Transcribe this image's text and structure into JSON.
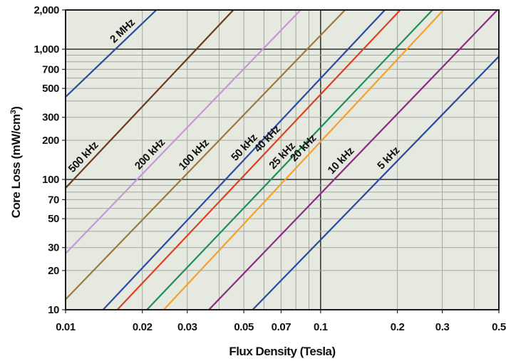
{
  "chart_data": {
    "type": "line",
    "scale": "log-log",
    "xlabel": "Flux Density (Tesla)",
    "ylabel": "Core Loss (mW/cm³)",
    "ylabel_base": "Core Loss (mW/cm",
    "ylabel_sup": "3",
    "ylabel_close": ")",
    "xlim": [
      0.01,
      0.5
    ],
    "ylim": [
      10,
      2000
    ],
    "grid": true,
    "plot_background": "#e6e9df",
    "grid_color": "#a5a8a2",
    "frame_color": "#1c1c1c",
    "x_ticks": [
      {
        "value": 0.01,
        "label": "0.01"
      },
      {
        "value": 0.02,
        "label": "0.02"
      },
      {
        "value": 0.03,
        "label": "0.03"
      },
      {
        "value": 0.05,
        "label": "0.05"
      },
      {
        "value": 0.07,
        "label": "0.07"
      },
      {
        "value": 0.1,
        "label": "0.1"
      },
      {
        "value": 0.2,
        "label": "0.2"
      },
      {
        "value": 0.3,
        "label": "0.3"
      },
      {
        "value": 0.5,
        "label": "0.5"
      }
    ],
    "x_minor_grid": [
      0.04,
      0.06,
      0.08,
      0.09,
      0.4
    ],
    "y_ticks": [
      {
        "value": 10,
        "label": "10"
      },
      {
        "value": 20,
        "label": "20"
      },
      {
        "value": 30,
        "label": "30"
      },
      {
        "value": 50,
        "label": "50"
      },
      {
        "value": 70,
        "label": "70"
      },
      {
        "value": 100,
        "label": "100"
      },
      {
        "value": 200,
        "label": "200"
      },
      {
        "value": 300,
        "label": "300"
      },
      {
        "value": 500,
        "label": "500"
      },
      {
        "value": 700,
        "label": "700"
      },
      {
        "value": 1000,
        "label": "1,000"
      },
      {
        "value": 2000,
        "label": "2,000"
      }
    ],
    "y_minor_grid": [
      40,
      60,
      80,
      90,
      400,
      600,
      800,
      900
    ],
    "y_major_grid": [
      10,
      100,
      1000
    ],
    "series": [
      {
        "name": "2 MHz",
        "color": "#2a4a9c",
        "points": [
          [
            0.01,
            430
          ],
          [
            0.0227,
            2000
          ]
        ],
        "label_at": 0.0176
      },
      {
        "name": "500 kHz",
        "color": "#6a3a1c",
        "points": [
          [
            0.01,
            86
          ],
          [
            0.0455,
            2000
          ]
        ],
        "label_at": 0.0124
      },
      {
        "name": "200 kHz",
        "color": "#c597d6",
        "points": [
          [
            0.01,
            27
          ],
          [
            0.0835,
            2000
          ]
        ],
        "label_at": 0.0226
      },
      {
        "name": "100 kHz",
        "color": "#9a7a3a",
        "points": [
          [
            0.01,
            12
          ],
          [
            0.1247,
            2000
          ]
        ],
        "label_at": 0.0336
      },
      {
        "name": "50 kHz",
        "color": "#2a4aa3",
        "points": [
          [
            0.01403,
            10
          ],
          [
            0.1787,
            2000
          ]
        ],
        "label_at": 0.053
      },
      {
        "name": "40 kHz",
        "color": "#dd4020",
        "points": [
          [
            0.01595,
            10
          ],
          [
            0.2054,
            2000
          ]
        ],
        "label_at": 0.0652
      },
      {
        "name": "25 kHz",
        "color": "#1f8f58",
        "points": [
          [
            0.02084,
            10
          ],
          [
            0.2745,
            2000
          ]
        ],
        "label_at": 0.0746
      },
      {
        "name": "20 kHz",
        "color": "#f5a02c",
        "points": [
          [
            0.02426,
            10
          ],
          [
            0.3033,
            2000
          ]
        ],
        "label_at": 0.0903
      },
      {
        "name": "10 kHz",
        "color": "#8b2a86",
        "points": [
          [
            0.03647,
            10
          ],
          [
            0.4934,
            2000
          ]
        ],
        "label_at": 0.1267
      },
      {
        "name": "5 kHz",
        "color": "#2a48a0",
        "points": [
          [
            0.05414,
            10
          ],
          [
            0.5,
            880
          ]
        ],
        "label_at": 0.1947
      }
    ]
  }
}
